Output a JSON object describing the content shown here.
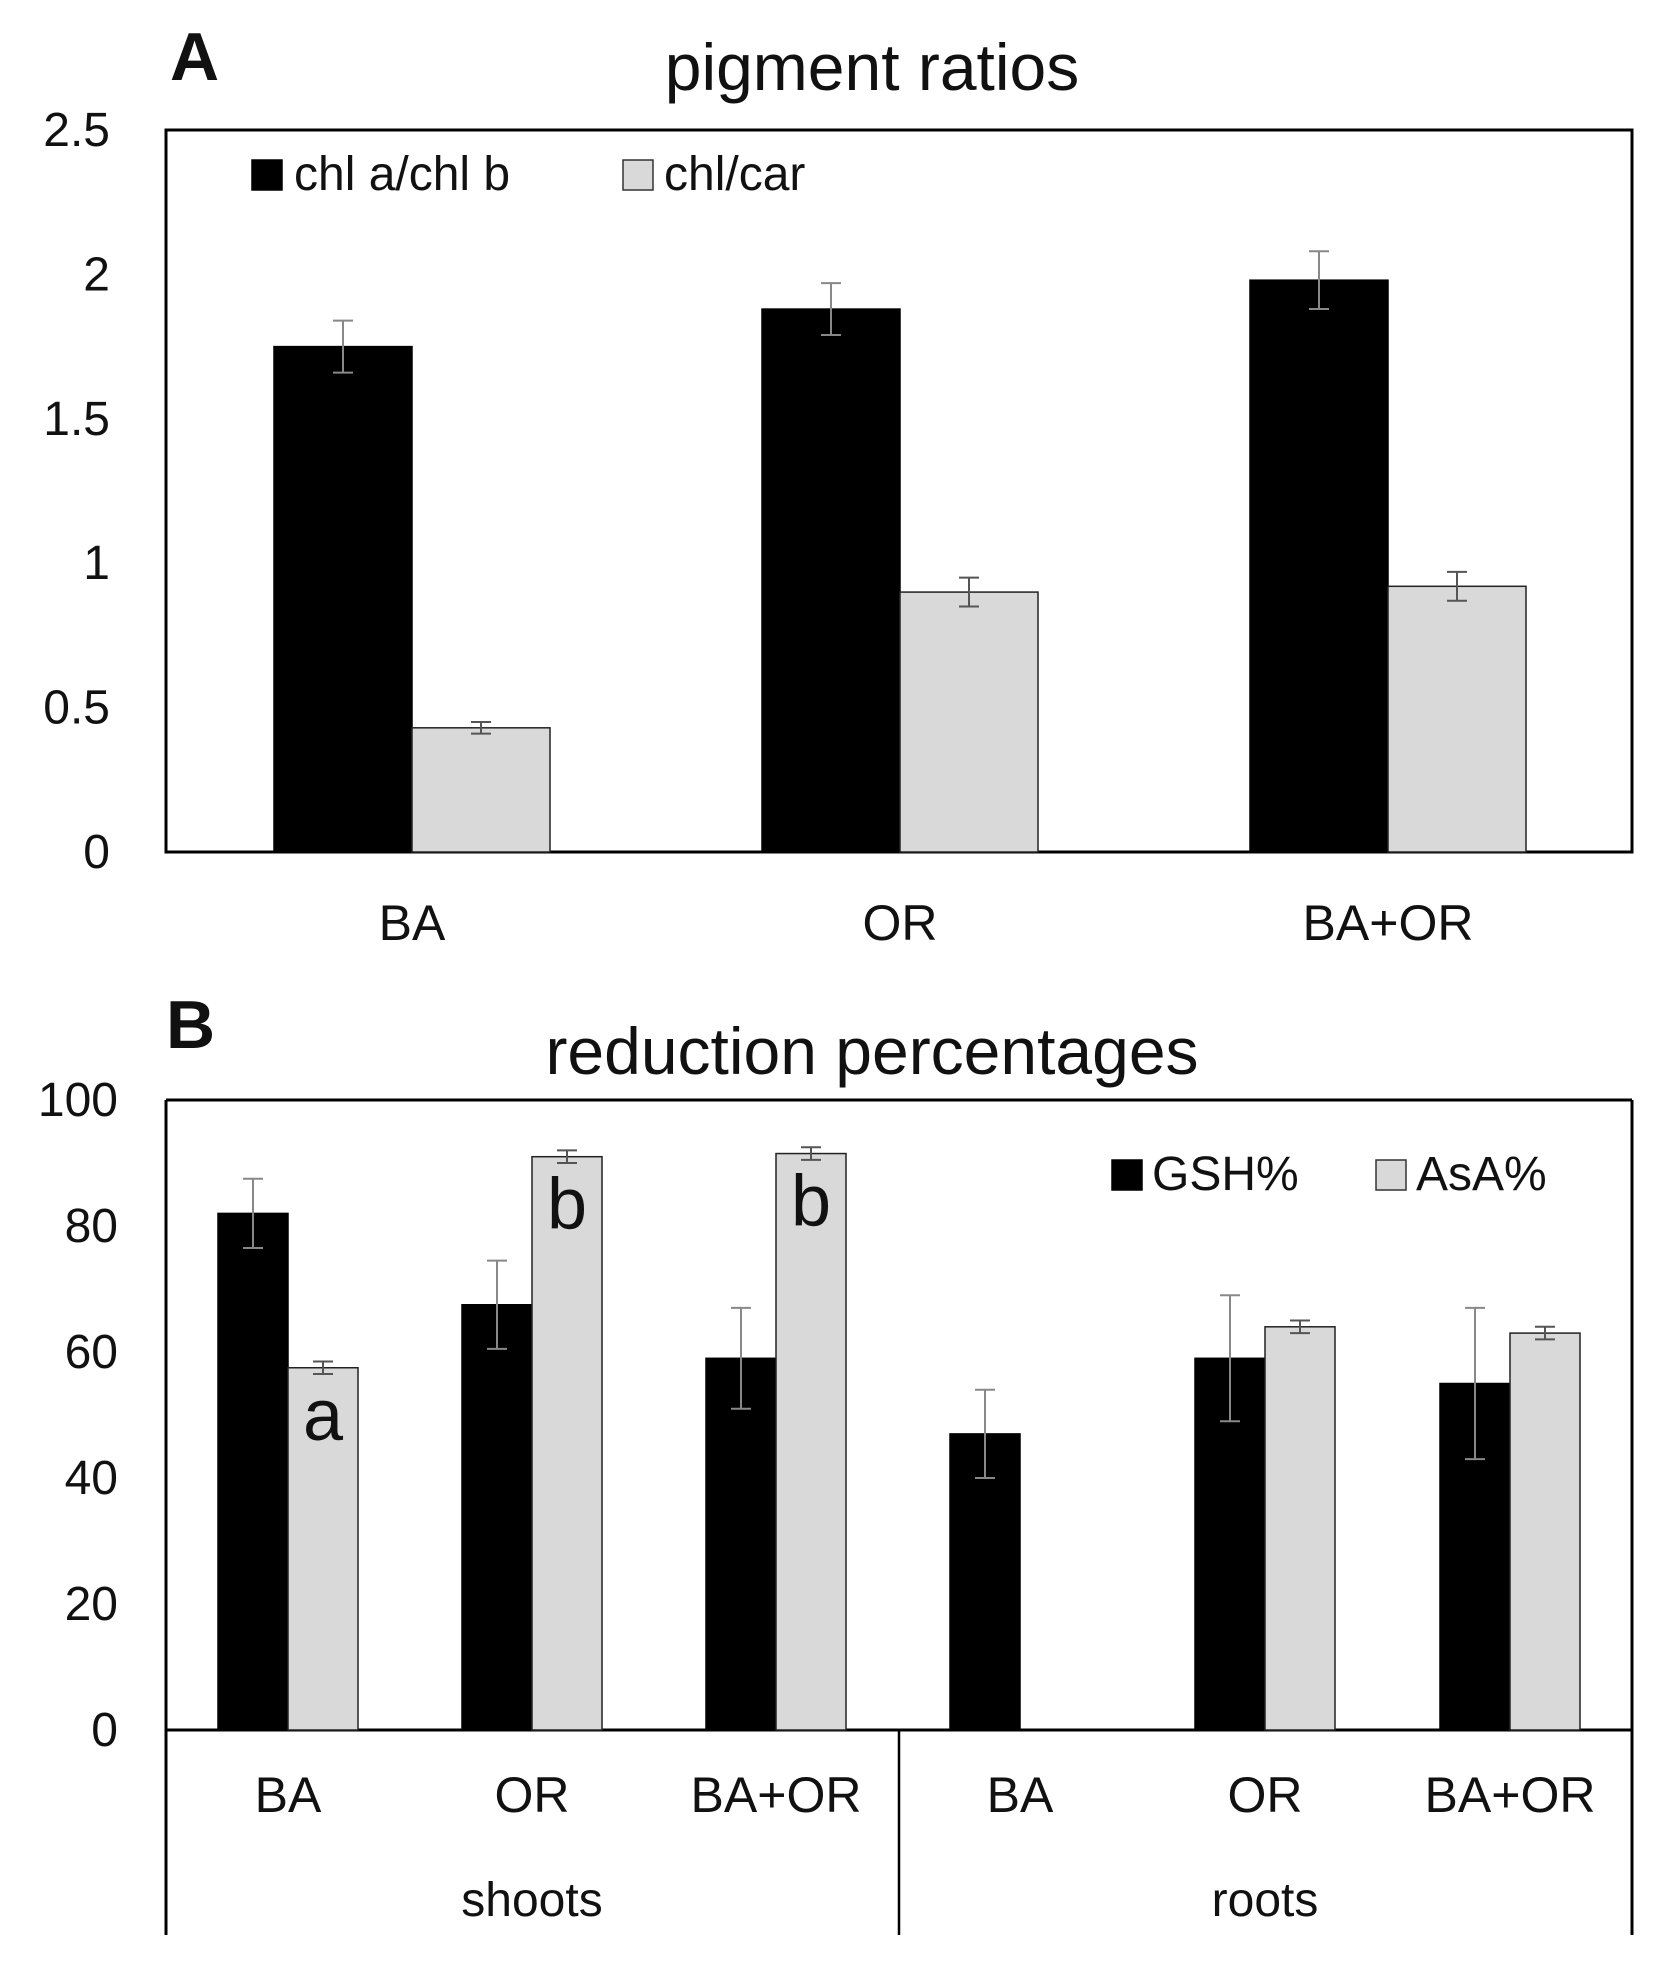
{
  "chart_data": [
    {
      "panel": "A",
      "type": "bar",
      "title": "pigment ratios",
      "categories": [
        "BA",
        "OR",
        "BA+OR"
      ],
      "series": [
        {
          "name": "chl a/chl b",
          "color": "#000000",
          "values": [
            1.75,
            1.88,
            1.98
          ],
          "errors": [
            0.09,
            0.09,
            0.1
          ]
        },
        {
          "name": "chl/car",
          "color": "#d9d9d9",
          "values": [
            0.43,
            0.9,
            0.92
          ],
          "errors": [
            0.02,
            0.05,
            0.05
          ]
        }
      ],
      "ylim": [
        0,
        2.5
      ],
      "yticks": [
        "0",
        "0.5",
        "1",
        "1.5",
        "2",
        "2.5"
      ],
      "xlabel": "",
      "ylabel": "",
      "legend": "top-left",
      "grid": false
    },
    {
      "panel": "B",
      "type": "bar",
      "title": "reduction percentages",
      "categories": [
        "BA",
        "OR",
        "BA+OR",
        "BA",
        "OR",
        "BA+OR"
      ],
      "groups": [
        {
          "label": "shoots",
          "span": [
            0,
            2
          ]
        },
        {
          "label": "roots",
          "span": [
            3,
            5
          ]
        }
      ],
      "series": [
        {
          "name": "GSH%",
          "color": "#000000",
          "values": [
            82,
            67.5,
            59,
            47,
            59,
            55
          ],
          "errors": [
            5.5,
            7,
            8,
            7,
            10,
            12
          ]
        },
        {
          "name": "AsA%",
          "color": "#d9d9d9",
          "values": [
            57.5,
            91,
            91.5,
            null,
            64,
            63
          ],
          "errors": [
            1,
            1,
            1,
            null,
            1,
            1
          ]
        }
      ],
      "annotations": [
        {
          "series": "AsA%",
          "index": 0,
          "text": "a"
        },
        {
          "series": "AsA%",
          "index": 1,
          "text": "b"
        },
        {
          "series": "AsA%",
          "index": 2,
          "text": "b"
        }
      ],
      "ylim": [
        0,
        100
      ],
      "yticks": [
        "0",
        "20",
        "40",
        "60",
        "80",
        "100"
      ],
      "xlabel": "",
      "ylabel": "",
      "legend": "top-right",
      "grid": false
    }
  ]
}
